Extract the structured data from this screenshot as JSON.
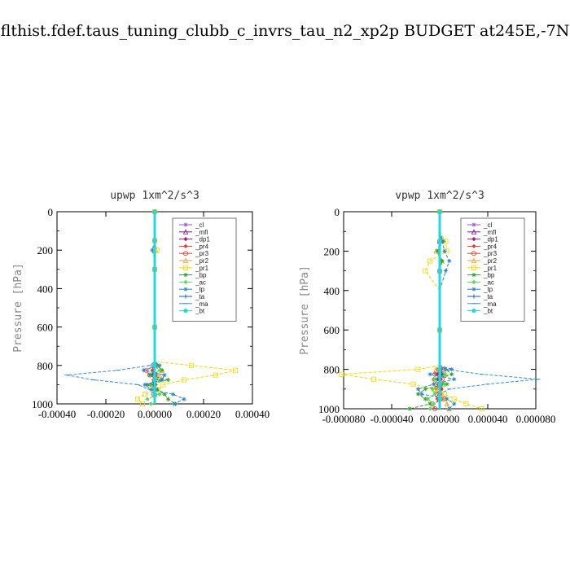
{
  "title": "flthist.fdef.taus_tuning_clubb_c_invrs_tau_n2_xp2p  BUDGET at245E,-7N",
  "chart_data": [
    {
      "type": "line",
      "title": "upwp   1xm^2/s^3",
      "ylabel": "Pressure [hPa]",
      "xlim": [
        -0.0004,
        0.0004
      ],
      "ylim": [
        1000,
        0
      ],
      "xticks": [
        -0.0004,
        -0.0002,
        0.0,
        0.0002,
        0.0004
      ],
      "xtick_labels": [
        "-0.00040",
        "-0.00020",
        "0.00000",
        "0.00020",
        "0.00040"
      ],
      "yticks": [
        0,
        200,
        400,
        600,
        800,
        1000
      ],
      "ytick_labels": [
        "0",
        "200",
        "400",
        "600",
        "800",
        "1000"
      ],
      "legend_position": "upper-right",
      "levels": [
        0,
        50,
        100,
        150,
        200,
        250,
        300,
        400,
        500,
        600,
        700,
        780,
        800,
        825,
        850,
        875,
        900,
        925,
        950,
        975,
        1000
      ],
      "series": [
        {
          "name": "_cl",
          "color": "#9b59d0",
          "marker": "star",
          "x": [
            0,
            0,
            0,
            0,
            0,
            0,
            0,
            0,
            0,
            0,
            0,
            0,
            0,
            0,
            0,
            0,
            0,
            0,
            0,
            0,
            0
          ]
        },
        {
          "name": "_mfl",
          "color": "#7a1a8c",
          "marker": "tri",
          "x": [
            0,
            0,
            0,
            0,
            0,
            0,
            0,
            0,
            0,
            0,
            0,
            0,
            0,
            0,
            0,
            0,
            0,
            0,
            0,
            0,
            0
          ]
        },
        {
          "name": "_dp1",
          "color": "#aa1a6e",
          "marker": "diamond",
          "x": [
            0,
            0,
            0,
            0,
            0,
            0,
            0,
            0,
            0,
            0,
            0,
            0,
            2e-06,
            -5e-06,
            4e-06,
            -3e-06,
            3e-06,
            0,
            2e-06,
            0,
            0
          ]
        },
        {
          "name": "_pr4",
          "color": "#e0433a",
          "marker": "diamond",
          "x": [
            0,
            0,
            0,
            0,
            0,
            0,
            0,
            0,
            0,
            0,
            0,
            0,
            -5e-06,
            -1e-05,
            5e-06,
            -5e-06,
            4e-06,
            0,
            3e-06,
            0,
            0
          ]
        },
        {
          "name": "_pr3",
          "color": "#e83a30",
          "marker": "ring",
          "x": [
            0,
            0,
            0,
            0,
            0,
            0,
            0,
            0,
            0,
            0,
            0,
            0,
            0,
            -3.5e-05,
            -2e-05,
            1e-05,
            -1e-05,
            5e-06,
            -5e-06,
            0,
            0
          ]
        },
        {
          "name": "_pr2",
          "color": "#f0a030",
          "marker": "tri",
          "x": [
            0,
            0,
            0,
            0,
            5e-06,
            0,
            0,
            0,
            0,
            0,
            0,
            0,
            1e-05,
            3e-05,
            2e-05,
            1e-05,
            -1e-05,
            5e-06,
            0,
            0,
            0
          ]
        },
        {
          "name": "_pr1",
          "color": "#f5d800",
          "marker": "square",
          "x": [
            0,
            0,
            0,
            0,
            1e-05,
            0,
            0,
            0,
            0,
            0,
            0,
            0,
            0.00015,
            0.00033,
            0.00025,
            0.00012,
            3.5e-05,
            1.5e-05,
            -4e-05,
            -7e-05,
            -5e-05
          ]
        },
        {
          "name": "_bp",
          "color": "#2ea02e",
          "marker": "star",
          "x": [
            0,
            0,
            0,
            0,
            0,
            0,
            0,
            0,
            0,
            0,
            0,
            0,
            1e-05,
            3e-05,
            -2e-05,
            5.5e-05,
            -3e-05,
            1e-05,
            4e-05,
            5.5e-05,
            8.5e-05
          ]
        },
        {
          "name": "_ac",
          "color": "#5cd65c",
          "marker": "diamond",
          "x": [
            0,
            0,
            0,
            0,
            0,
            0,
            0,
            0,
            0,
            0,
            0,
            0,
            -5e-06,
            2e-05,
            -1e-05,
            2.5e-05,
            -1e-05,
            -5e-06,
            2e-05,
            -3e-05,
            -1.5e-05
          ]
        },
        {
          "name": "_tp",
          "color": "#2f86c8",
          "marker": "star",
          "x": [
            0,
            0,
            0,
            0,
            -1e-05,
            0,
            0,
            0,
            0,
            0,
            0,
            0,
            2e-05,
            -4.5e-05,
            4e-05,
            3e-05,
            -4e-05,
            -1.5e-05,
            7.5e-05,
            0.00012,
            8e-05
          ]
        },
        {
          "name": "_ta",
          "color": "#1a5caa",
          "marker": "plus",
          "x": [
            0,
            0,
            0,
            0,
            0,
            0,
            0,
            0,
            0,
            0,
            0,
            0,
            0,
            0,
            -1e-05,
            5e-06,
            -5e-06,
            0,
            0,
            0,
            0
          ]
        },
        {
          "name": "_ma",
          "color": "#3a8fd8",
          "marker": "dash",
          "x": [
            0,
            0,
            0,
            0,
            0,
            0,
            0,
            0,
            0,
            0,
            0,
            0,
            -2e-05,
            -0.00015,
            -0.00036,
            -0.00025,
            -7e-05,
            -2e-05,
            0,
            0,
            0
          ]
        },
        {
          "name": "_bt",
          "color": "#20d8e0",
          "marker": "circle",
          "x": [
            0,
            0,
            0,
            0,
            0,
            0,
            0,
            0,
            0,
            0,
            0,
            0,
            0,
            0,
            0,
            0,
            0,
            0,
            0,
            0,
            0
          ]
        }
      ]
    },
    {
      "type": "line",
      "title": "vpwp   1xm^2/s^3",
      "ylabel": "Pressure [hPa]",
      "xlim": [
        -8e-05,
        8e-05
      ],
      "ylim": [
        1000,
        0
      ],
      "xticks": [
        -8e-05,
        -4e-05,
        0.0,
        4e-05,
        8e-05
      ],
      "xtick_labels": [
        "-0.000080",
        "-0.000040",
        "0.000000",
        "0.000040",
        "0.000080"
      ],
      "yticks": [
        0,
        200,
        400,
        600,
        800,
        1000
      ],
      "ytick_labels": [
        "0",
        "200",
        "400",
        "600",
        "800",
        "1000"
      ],
      "legend_position": "upper-right",
      "levels": [
        0,
        50,
        100,
        150,
        200,
        250,
        300,
        400,
        500,
        600,
        700,
        780,
        800,
        825,
        850,
        875,
        900,
        925,
        950,
        975,
        1000
      ],
      "series": [
        {
          "name": "_cl",
          "color": "#9b59d0",
          "marker": "star",
          "x": [
            0,
            0,
            0,
            0,
            0,
            0,
            0,
            0,
            0,
            0,
            0,
            0,
            0,
            0,
            0,
            0,
            0,
            0,
            0,
            0,
            0
          ]
        },
        {
          "name": "_mfl",
          "color": "#7a1a8c",
          "marker": "tri",
          "x": [
            0,
            0,
            0,
            0,
            0,
            0,
            0,
            0,
            0,
            0,
            0,
            0,
            0,
            0,
            0,
            0,
            0,
            0,
            0,
            0,
            0
          ]
        },
        {
          "name": "_dp1",
          "color": "#aa1a6e",
          "marker": "diamond",
          "x": [
            0,
            0,
            0,
            0,
            0,
            0,
            0,
            0,
            0,
            0,
            0,
            0,
            1e-06,
            -2e-06,
            1e-06,
            -1e-06,
            1e-06,
            0,
            0,
            0,
            0
          ]
        },
        {
          "name": "_pr4",
          "color": "#e0433a",
          "marker": "diamond",
          "x": [
            0,
            0,
            0,
            0,
            0,
            0,
            0,
            0,
            0,
            0,
            0,
            0,
            -2e-06,
            3e-06,
            -2e-06,
            2e-06,
            -3e-06,
            1e-06,
            -2e-06,
            0,
            0
          ]
        },
        {
          "name": "_pr3",
          "color": "#e83a30",
          "marker": "ring",
          "x": [
            0,
            0,
            0,
            0,
            0,
            0,
            0,
            0,
            0,
            0,
            0,
            0,
            3e-06,
            -4e-06,
            2e-06,
            -3e-06,
            1e-06,
            -3e-06,
            4e-06,
            -6e-06,
            -4e-06
          ]
        },
        {
          "name": "_pr2",
          "color": "#f0a030",
          "marker": "tri",
          "x": [
            0,
            0,
            0,
            2e-06,
            -3e-06,
            2e-06,
            0,
            0,
            0,
            0,
            0,
            0,
            -3e-06,
            5e-06,
            -4e-06,
            3e-06,
            -2e-06,
            2e-06,
            3e-06,
            6e-06,
            8e-06
          ]
        },
        {
          "name": "_pr1",
          "color": "#f5d800",
          "marker": "square",
          "x": [
            0,
            0,
            0,
            5e-06,
            6e-06,
            -8e-06,
            -1.2e-05,
            0,
            0,
            0,
            0,
            0,
            -1.8e-05,
            -8.2e-05,
            -5.5e-05,
            -2.2e-05,
            -5e-06,
            4e-06,
            1.2e-05,
            2.2e-05,
            3.5e-05
          ]
        },
        {
          "name": "_bp",
          "color": "#2ea02e",
          "marker": "star",
          "x": [
            0,
            0,
            0,
            3e-06,
            -2e-06,
            2e-06,
            0,
            0,
            0,
            0,
            0,
            0,
            5e-06,
            1e-05,
            -5e-06,
            6e-06,
            -1.2e-05,
            -1.8e-05,
            -1.2e-05,
            -8e-06,
            -2.5e-05
          ]
        },
        {
          "name": "_ac",
          "color": "#5cd65c",
          "marker": "diamond",
          "x": [
            0,
            0,
            0,
            0,
            0,
            0,
            0,
            0,
            0,
            0,
            0,
            0,
            0,
            4e-06,
            -4e-06,
            4e-06,
            -6e-06,
            -4e-06,
            -1e-05,
            -5e-06,
            -8e-06
          ]
        },
        {
          "name": "_tp",
          "color": "#2f86c8",
          "marker": "star",
          "x": [
            0,
            0,
            0,
            2e-06,
            4e-06,
            8e-06,
            5e-06,
            0,
            0,
            0,
            0,
            0,
            1e-05,
            -8e-06,
            1.2e-05,
            -5e-06,
            -1.8e-05,
            -1.5e-05,
            6e-06,
            1.2e-05,
            8e-06
          ]
        },
        {
          "name": "_ta",
          "color": "#1a5caa",
          "marker": "plus",
          "x": [
            0,
            0,
            0,
            0,
            0,
            0,
            0,
            0,
            0,
            0,
            0,
            0,
            0,
            2e-06,
            -2e-06,
            1e-06,
            0,
            0,
            0,
            0,
            0
          ]
        },
        {
          "name": "_ma",
          "color": "#3a8fd8",
          "marker": "dash",
          "x": [
            0,
            0,
            0,
            0,
            0,
            0,
            0,
            0,
            0,
            0,
            0,
            0,
            5e-06,
            3.5e-05,
            8.2e-05,
            4e-05,
            8e-06,
            0,
            0,
            0,
            0
          ]
        },
        {
          "name": "_bt",
          "color": "#20d8e0",
          "marker": "circle",
          "x": [
            0,
            0,
            0,
            0,
            0,
            0,
            0,
            0,
            0,
            0,
            0,
            0,
            0,
            0,
            0,
            0,
            0,
            0,
            0,
            0,
            0
          ]
        }
      ]
    }
  ]
}
